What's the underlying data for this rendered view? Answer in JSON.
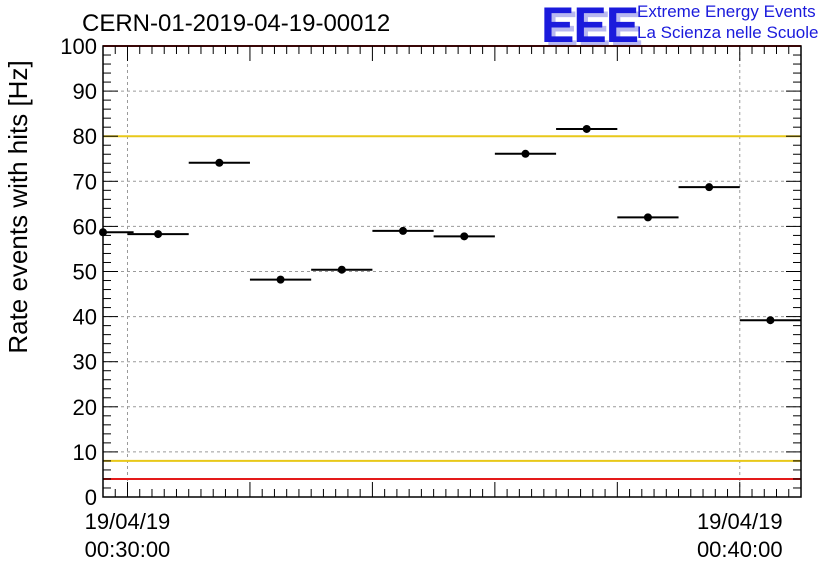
{
  "header": {
    "title": "CERN-01-2019-04-19-00012",
    "logo_mark": "EEE",
    "logo_line1": "Extreme Energy Events",
    "logo_line2": "La Scienza nelle Scuole"
  },
  "colors": {
    "limit_red": "#e41a1a",
    "limit_yellow": "#e8c81a",
    "logo_blue": "#1a1adc",
    "grid": "#9a9a9a"
  },
  "chart_data": {
    "type": "scatter",
    "title": "CERN-01-2019-04-19-00012",
    "ylabel": "Rate events with hits [Hz]",
    "xlabel": "",
    "ylim": [
      0,
      100
    ],
    "yticks": [
      0,
      10,
      20,
      30,
      40,
      50,
      60,
      70,
      80,
      90,
      100
    ],
    "x_unit": "minutes after 00:00:00 on 19/04/19",
    "xlim": [
      29.6,
      41.0
    ],
    "x_major_ticks": [
      30,
      32,
      34,
      36,
      38,
      40
    ],
    "x_tick_labels": [
      {
        "x": 30,
        "date": "19/04/19",
        "time": "00:30:00"
      },
      {
        "x": 40,
        "date": "19/04/19",
        "time": "00:40:00"
      }
    ],
    "grid": true,
    "points": [
      {
        "x": 29.6,
        "xerr": 0.5,
        "y": 58.7
      },
      {
        "x": 30.5,
        "xerr": 0.5,
        "y": 58.3
      },
      {
        "x": 31.5,
        "xerr": 0.5,
        "y": 74.1
      },
      {
        "x": 32.5,
        "xerr": 0.5,
        "y": 48.2
      },
      {
        "x": 33.5,
        "xerr": 0.5,
        "y": 50.4
      },
      {
        "x": 34.5,
        "xerr": 0.5,
        "y": 59.0
      },
      {
        "x": 35.5,
        "xerr": 0.5,
        "y": 57.8
      },
      {
        "x": 36.5,
        "xerr": 0.5,
        "y": 76.1
      },
      {
        "x": 37.5,
        "xerr": 0.5,
        "y": 81.6
      },
      {
        "x": 38.5,
        "xerr": 0.5,
        "y": 62.0
      },
      {
        "x": 39.5,
        "xerr": 0.5,
        "y": 68.7
      },
      {
        "x": 40.5,
        "xerr": 0.5,
        "y": 39.2
      }
    ],
    "reference_lines": [
      {
        "y": 100,
        "color": "#e41a1a"
      },
      {
        "y": 80,
        "color": "#e8c81a"
      },
      {
        "y": 8,
        "color": "#e8c81a"
      },
      {
        "y": 4,
        "color": "#e41a1a"
      }
    ]
  }
}
